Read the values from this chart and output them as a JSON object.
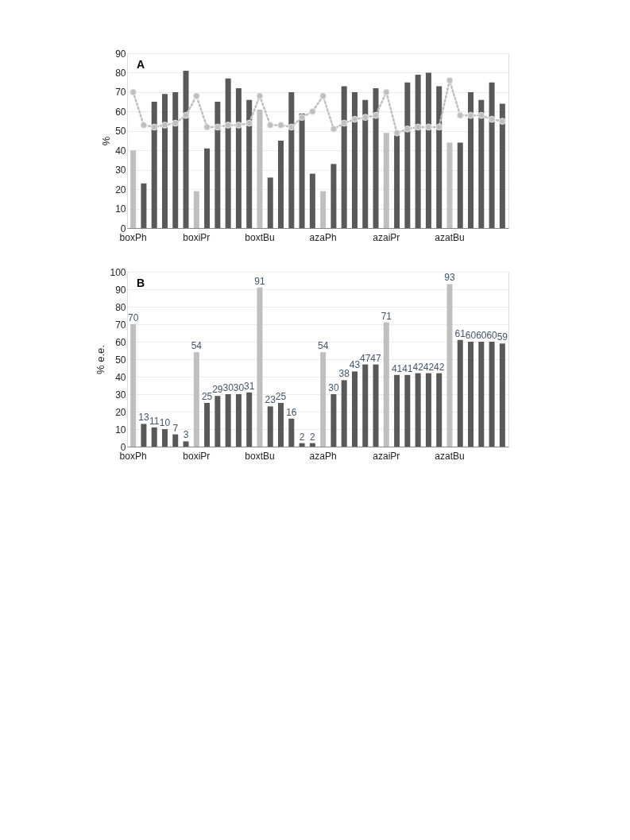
{
  "chart_data": [
    {
      "type": "bar",
      "title": "A",
      "ylabel": "%",
      "ylim": [
        0,
        90
      ],
      "yticks": [
        0,
        10,
        20,
        30,
        40,
        50,
        60,
        70,
        80,
        90
      ],
      "grid": "y",
      "categories": [
        "boxPh",
        null,
        null,
        null,
        null,
        null,
        "boxiPr",
        null,
        null,
        null,
        null,
        null,
        "boxtBu",
        null,
        null,
        null,
        null,
        null,
        "azaPh",
        null,
        null,
        null,
        null,
        null,
        "azaiPr",
        null,
        null,
        null,
        null,
        null,
        "azatBu",
        null,
        null,
        null,
        null,
        null
      ],
      "series": [
        {
          "values": [
            40,
            23,
            65,
            69,
            70,
            81,
            19,
            41,
            65,
            77,
            72,
            66,
            61,
            26,
            45,
            70,
            59,
            28,
            19,
            33,
            73,
            70,
            66,
            72,
            49,
            48,
            75,
            79,
            80,
            73,
            44,
            44,
            70,
            66,
            75,
            64
          ],
          "colors": [
            "#bfbfbf",
            "#595959",
            "#595959",
            "#595959",
            "#595959",
            "#595959",
            "#bfbfbf",
            "#595959",
            "#595959",
            "#595959",
            "#595959",
            "#595959",
            "#bfbfbf",
            "#595959",
            "#595959",
            "#595959",
            "#595959",
            "#595959",
            "#bfbfbf",
            "#595959",
            "#595959",
            "#595959",
            "#595959",
            "#595959",
            "#bfbfbf",
            "#595959",
            "#595959",
            "#595959",
            "#595959",
            "#595959",
            "#bfbfbf",
            "#595959",
            "#595959",
            "#595959",
            "#595959",
            "#595959"
          ]
        },
        {
          "type": "line",
          "color": "#bfbfbf",
          "marker": "circle",
          "line_style": "dotted",
          "values": [
            70,
            53,
            52,
            53,
            54,
            58,
            68,
            52,
            52,
            53,
            53,
            54,
            68,
            53,
            53,
            52,
            57,
            60,
            68,
            51,
            54,
            56,
            57,
            58,
            70,
            49,
            51,
            52,
            52,
            52,
            76,
            58,
            58,
            58,
            56,
            55
          ]
        }
      ]
    },
    {
      "type": "bar",
      "title": "B",
      "ylabel": "% e.e.",
      "ylim": [
        0,
        100
      ],
      "yticks": [
        0,
        10,
        20,
        30,
        40,
        50,
        60,
        70,
        80,
        90,
        100
      ],
      "grid": "y",
      "data_labels": true,
      "categories": [
        "boxPh",
        null,
        null,
        null,
        null,
        null,
        "boxiPr",
        null,
        null,
        null,
        null,
        null,
        "boxtBu",
        null,
        null,
        null,
        null,
        null,
        "azaPh",
        null,
        null,
        null,
        null,
        null,
        "azaiPr",
        null,
        null,
        null,
        null,
        null,
        "azatBu",
        null,
        null,
        null,
        null,
        null
      ],
      "series": [
        {
          "values": [
            70,
            13,
            11,
            10,
            7,
            3,
            54,
            25,
            29,
            30,
            30,
            31,
            91,
            23,
            25,
            16,
            2,
            2,
            54,
            30,
            38,
            43,
            47,
            47,
            71,
            41,
            41,
            42,
            42,
            42,
            93,
            61,
            60,
            60,
            60,
            59
          ],
          "colors": [
            "#bfbfbf",
            "#595959",
            "#595959",
            "#595959",
            "#595959",
            "#595959",
            "#bfbfbf",
            "#595959",
            "#595959",
            "#595959",
            "#595959",
            "#595959",
            "#bfbfbf",
            "#595959",
            "#595959",
            "#595959",
            "#595959",
            "#595959",
            "#bfbfbf",
            "#595959",
            "#595959",
            "#595959",
            "#595959",
            "#595959",
            "#bfbfbf",
            "#595959",
            "#595959",
            "#595959",
            "#595959",
            "#595959",
            "#bfbfbf",
            "#595959",
            "#595959",
            "#595959",
            "#595959",
            "#595959"
          ]
        }
      ]
    }
  ]
}
